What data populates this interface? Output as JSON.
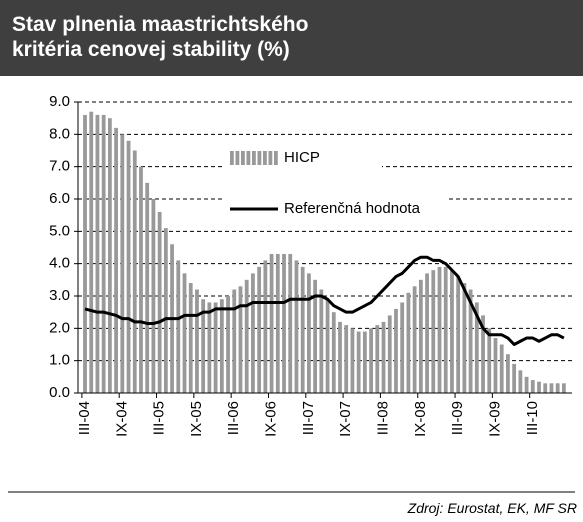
{
  "chart_data": {
    "type": "bar",
    "title": "Stav plnenia maastrichtského kritéria cenovej stability (%)",
    "categories": [
      "III-04",
      null,
      null,
      null,
      null,
      null,
      "IX-04",
      null,
      null,
      null,
      null,
      null,
      "III-05",
      null,
      null,
      null,
      null,
      null,
      "IX-05",
      null,
      null,
      null,
      null,
      null,
      "III-06",
      null,
      null,
      null,
      null,
      null,
      "IX-06",
      null,
      null,
      null,
      null,
      null,
      "III-07",
      null,
      null,
      null,
      null,
      null,
      "IX-07",
      null,
      null,
      null,
      null,
      null,
      "III-08",
      null,
      null,
      null,
      null,
      null,
      "IX-08",
      null,
      null,
      null,
      null,
      null,
      "III-09",
      null,
      null,
      null,
      null,
      null,
      "IX-09",
      null,
      null,
      null,
      null,
      null,
      "III-10",
      null,
      null,
      null,
      null,
      null
    ],
    "series": [
      {
        "name": "HICP",
        "color": "#999999",
        "type": "bar",
        "values": [
          8.6,
          8.7,
          8.6,
          8.6,
          8.5,
          8.2,
          8.0,
          7.8,
          7.5,
          7.0,
          6.5,
          6.0,
          5.6,
          5.1,
          4.6,
          4.1,
          3.7,
          3.4,
          3.2,
          2.9,
          2.8,
          2.8,
          2.9,
          3.0,
          3.2,
          3.3,
          3.5,
          3.7,
          3.9,
          4.1,
          4.3,
          4.3,
          4.3,
          4.3,
          4.1,
          3.9,
          3.7,
          3.5,
          3.2,
          2.9,
          2.5,
          2.2,
          2.1,
          2.0,
          1.9,
          1.9,
          2.0,
          2.1,
          2.2,
          2.4,
          2.6,
          2.8,
          3.1,
          3.3,
          3.5,
          3.7,
          3.8,
          3.9,
          3.9,
          3.8,
          3.6,
          3.4,
          3.2,
          2.8,
          2.4,
          2.0,
          1.7,
          1.5,
          1.2,
          0.9,
          0.7,
          0.5,
          0.4,
          0.35,
          0.3,
          0.3,
          0.3,
          0.3
        ]
      },
      {
        "name": "Referenčná hodnota",
        "color": "#000000",
        "type": "line",
        "values": [
          2.6,
          2.55,
          2.5,
          2.5,
          2.45,
          2.4,
          2.3,
          2.3,
          2.2,
          2.2,
          2.15,
          2.15,
          2.2,
          2.3,
          2.3,
          2.3,
          2.4,
          2.4,
          2.4,
          2.5,
          2.5,
          2.6,
          2.6,
          2.6,
          2.6,
          2.7,
          2.7,
          2.8,
          2.8,
          2.8,
          2.8,
          2.8,
          2.8,
          2.9,
          2.9,
          2.9,
          2.9,
          3.0,
          3.0,
          2.9,
          2.7,
          2.6,
          2.5,
          2.5,
          2.6,
          2.7,
          2.8,
          3.0,
          3.2,
          3.4,
          3.6,
          3.7,
          3.9,
          4.1,
          4.2,
          4.2,
          4.1,
          4.1,
          4.0,
          3.8,
          3.6,
          3.2,
          2.8,
          2.4,
          2.0,
          1.8,
          1.8,
          1.8,
          1.7,
          1.5,
          1.6,
          1.7,
          1.7,
          1.6,
          1.7,
          1.8,
          1.8,
          1.7
        ]
      }
    ],
    "ylim": [
      0,
      9
    ],
    "yticks": [
      {
        "value": 0,
        "label": "0.0"
      },
      {
        "value": 1,
        "label": "1.0"
      },
      {
        "value": 2,
        "label": "2.0"
      },
      {
        "value": 3,
        "label": "3.0"
      },
      {
        "value": 4,
        "label": "4.0"
      },
      {
        "value": 5,
        "label": "5.0"
      },
      {
        "value": 6,
        "label": "6.0"
      },
      {
        "value": 7,
        "label": "7.0"
      },
      {
        "value": 8,
        "label": "8.0"
      },
      {
        "value": 9,
        "label": "9.0"
      }
    ],
    "grid": true,
    "source": "Zdroj: Eurostat, EK, MF SR"
  }
}
